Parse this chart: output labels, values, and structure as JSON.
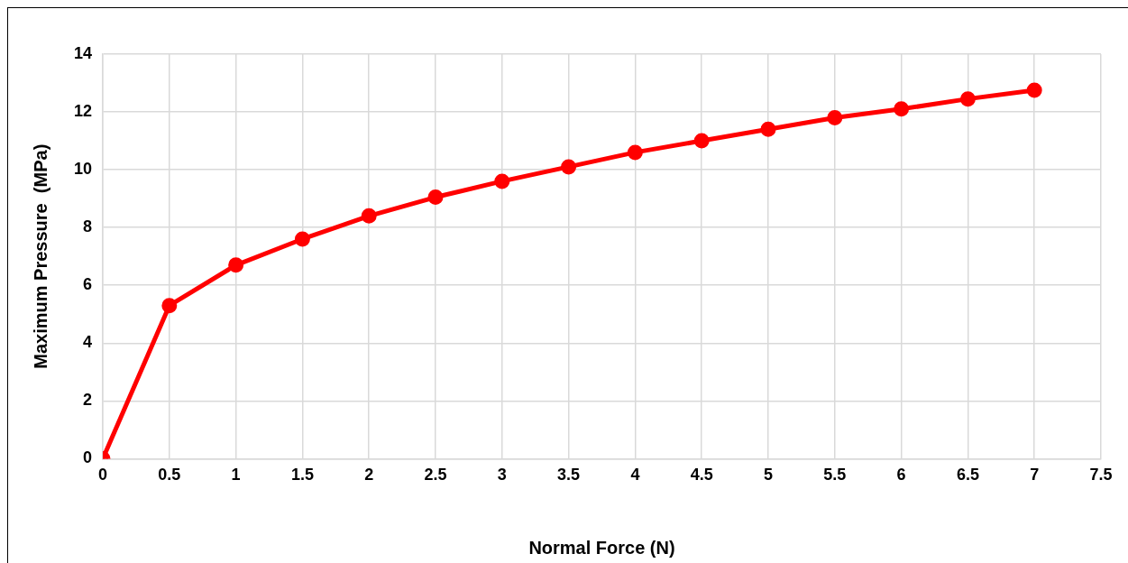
{
  "chart_data": {
    "type": "line",
    "xlabel": "Normal Force (N)",
    "ylabel": "Maximum Pressure  (MPa)",
    "x": [
      0,
      0.5,
      1,
      1.5,
      2,
      2.5,
      3,
      3.5,
      4,
      4.5,
      5,
      5.5,
      6,
      6.5,
      7
    ],
    "series": [
      {
        "color": "#ff0000",
        "values": [
          0,
          5.3,
          6.7,
          7.6,
          8.4,
          9.05,
          9.6,
          10.1,
          10.6,
          11.0,
          11.4,
          11.8,
          12.1,
          12.45,
          12.75
        ]
      }
    ],
    "xlim": [
      0,
      7.5
    ],
    "xticks": [
      0,
      0.5,
      1,
      1.5,
      2,
      2.5,
      3,
      3.5,
      4,
      4.5,
      5,
      5.5,
      6,
      6.5,
      7,
      7.5
    ],
    "ylim": [
      0,
      14
    ],
    "yticks": [
      0,
      2,
      4,
      6,
      8,
      10,
      12,
      14
    ],
    "grid": true,
    "legend": false,
    "marker": "circle",
    "line_style": "solid"
  }
}
